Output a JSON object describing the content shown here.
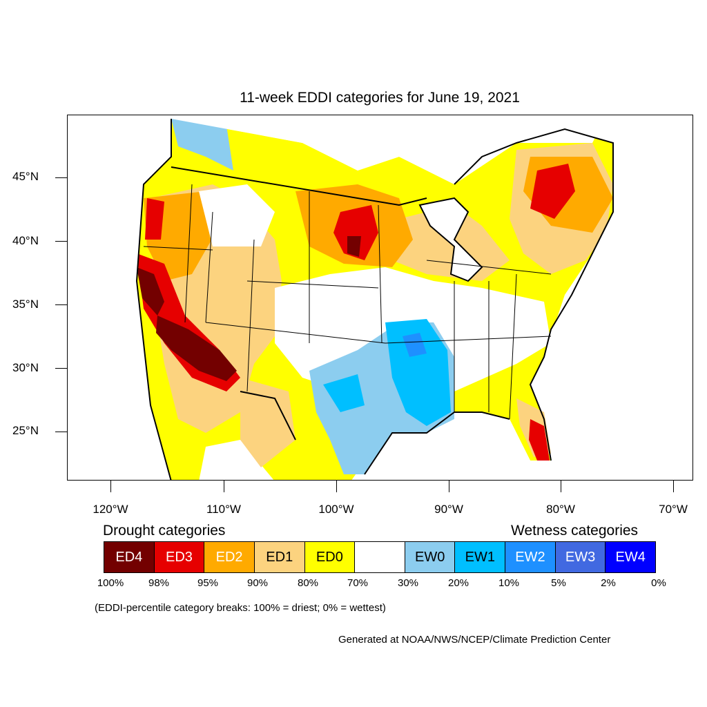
{
  "map": {
    "title": "11-week EDDI categories for June 19, 2021",
    "latitude_labels": [
      "45°N",
      "40°N",
      "35°N",
      "30°N",
      "25°N"
    ],
    "longitude_labels": [
      "120°W",
      "110°W",
      "100°W",
      "90°W",
      "80°W",
      "70°W"
    ]
  },
  "legend": {
    "drought_heading": "Drought categories",
    "wetness_heading": "Wetness categories",
    "categories": [
      {
        "label": "ED4",
        "color": "#730000",
        "text_color": "#ffffff"
      },
      {
        "label": "ED3",
        "color": "#e60000",
        "text_color": "#ffffff"
      },
      {
        "label": "ED2",
        "color": "#ffaa00",
        "text_color": "#ffffff"
      },
      {
        "label": "ED1",
        "color": "#fcd37f",
        "text_color": "#000000"
      },
      {
        "label": "ED0",
        "color": "#ffff00",
        "text_color": "#000000"
      },
      {
        "label": "",
        "color": "#ffffff",
        "text_color": "#000000"
      },
      {
        "label": "EW0",
        "color": "#8ccdef",
        "text_color": "#000000"
      },
      {
        "label": "EW1",
        "color": "#00bfff",
        "text_color": "#000000"
      },
      {
        "label": "EW2",
        "color": "#1e90ff",
        "text_color": "#ffffff"
      },
      {
        "label": "EW3",
        "color": "#4169e1",
        "text_color": "#ffffff"
      },
      {
        "label": "EW4",
        "color": "#0000ff",
        "text_color": "#ffffff"
      }
    ],
    "breaks": [
      "100%",
      "98%",
      "95%",
      "90%",
      "80%",
      "70%",
      "30%",
      "20%",
      "10%",
      "5%",
      "2%",
      "0%"
    ],
    "note": "(EDDI-percentile category breaks: 100% = driest; 0% = wettest)"
  },
  "credit": "Generated at NOAA/NWS/NCEP/Climate Prediction Center"
}
